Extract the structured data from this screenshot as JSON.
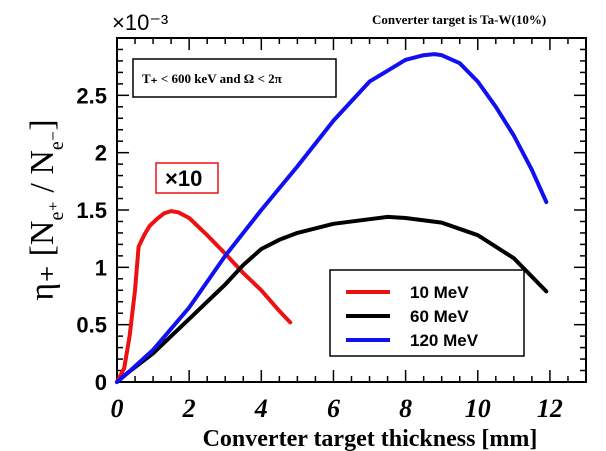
{
  "chart_data": {
    "type": "line",
    "title": "Converter target is Ta-W(10%)",
    "xlabel": "Converter target thickness [mm]",
    "ylabel": "η₊ [N",
    "ylabel_sub": "e⁺",
    "ylabel_mid": " / N",
    "ylabel_sub2": "e⁻",
    "ylabel_end": "]",
    "y_multiplier": "×10⁻³",
    "xlim": [
      0,
      13
    ],
    "ylim": [
      0,
      3.0
    ],
    "x_ticks": [
      "0",
      "2",
      "4",
      "6",
      "8",
      "10",
      "12"
    ],
    "y_ticks": [
      "0",
      "0.5",
      "1",
      "1.5",
      "2",
      "2.5"
    ],
    "annotation": "T₊ < 600 keV  and  Ω < 2π",
    "scale_label": "×10",
    "colors": {
      "red": "#ee1111",
      "black": "#000000",
      "blue": "#1010f0"
    },
    "series": [
      {
        "name": "10 MeV",
        "color": "#ee1111",
        "x": [
          0.0,
          0.2,
          0.35,
          0.5,
          0.6,
          0.75,
          0.9,
          1.1,
          1.3,
          1.5,
          1.7,
          2.0,
          2.5,
          3.0,
          3.5,
          4.0,
          4.5,
          4.8
        ],
        "y": [
          0.0,
          0.12,
          0.4,
          0.8,
          1.18,
          1.28,
          1.36,
          1.42,
          1.47,
          1.49,
          1.48,
          1.43,
          1.28,
          1.12,
          0.95,
          0.8,
          0.62,
          0.52
        ]
      },
      {
        "name": "60 MeV",
        "color": "#000000",
        "x": [
          0.0,
          0.3,
          1.0,
          2.0,
          3.0,
          3.5,
          4.0,
          4.5,
          5.0,
          6.0,
          7.0,
          7.5,
          8.0,
          9.0,
          10.0,
          11.0,
          11.9
        ],
        "y": [
          0.0,
          0.08,
          0.25,
          0.55,
          0.85,
          1.02,
          1.16,
          1.24,
          1.3,
          1.38,
          1.42,
          1.44,
          1.43,
          1.39,
          1.28,
          1.08,
          0.79
        ]
      },
      {
        "name": "120 MeV",
        "color": "#1010f0",
        "x": [
          0.0,
          0.3,
          1.0,
          2.0,
          3.0,
          4.0,
          5.0,
          6.0,
          7.0,
          8.0,
          8.5,
          8.8,
          9.0,
          9.5,
          10.0,
          10.5,
          11.0,
          11.5,
          11.9
        ],
        "y": [
          0.0,
          0.08,
          0.28,
          0.65,
          1.1,
          1.5,
          1.88,
          2.28,
          2.62,
          2.81,
          2.85,
          2.86,
          2.85,
          2.78,
          2.62,
          2.4,
          2.15,
          1.85,
          1.57
        ]
      }
    ],
    "legend_position": "lower-right"
  }
}
